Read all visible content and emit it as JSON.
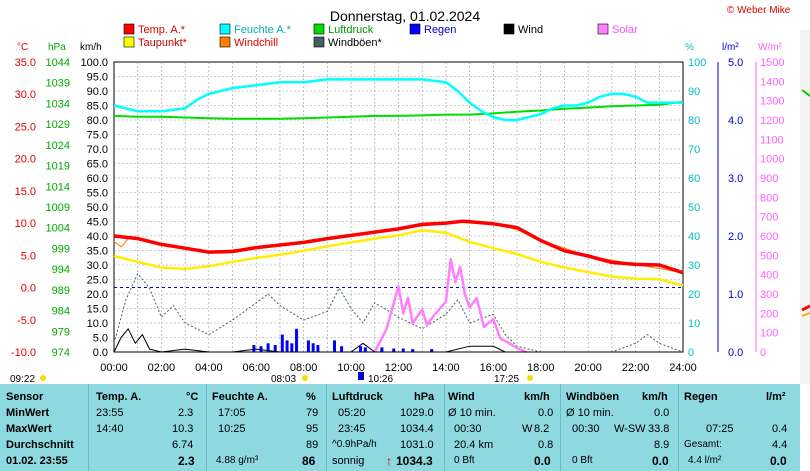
{
  "title": "Donnerstag, 01.02.2024",
  "copyright": "© Weber Mike",
  "legend": [
    {
      "label": "Temp. A.*",
      "color": "#ff0000"
    },
    {
      "label": "Feuchte A.*",
      "color": "#00ffff"
    },
    {
      "label": "Luftdruck",
      "color": "#00dd00"
    },
    {
      "label": "Regen",
      "color": "#0000ff"
    },
    {
      "label": "Wind",
      "color": "#000000"
    },
    {
      "label": "Solar",
      "color": "#ff80ff"
    },
    {
      "label": "Taupunkt*",
      "color": "#ffff00"
    },
    {
      "label": "Windchill",
      "color": "#ff8000"
    },
    {
      "label": "Windböen*",
      "color": "#406060"
    }
  ],
  "axis_units": {
    "temp": "°C",
    "pressure": "hPa",
    "wind": "km/h",
    "humidity": "%",
    "rain": "l/m²",
    "solar": "W/m²"
  },
  "markers": {
    "sunrise": "08:03",
    "sunset": "17:25",
    "moonrise": "09:22",
    "noon": "10:26"
  },
  "chart_data": {
    "type": "line",
    "x_ticks": [
      "00:00",
      "02:00",
      "04:00",
      "06:00",
      "08:00",
      "10:00",
      "12:00",
      "14:00",
      "16:00",
      "18:00",
      "20:00",
      "22:00",
      "24:00"
    ],
    "xlim": [
      0,
      24
    ],
    "axes": {
      "temp": {
        "ticks": [
          "35.0",
          "30.0",
          "25.0",
          "20.0",
          "15.0",
          "10.0",
          "5.0",
          "0.0",
          "-5.0",
          "-10.0"
        ],
        "ylim": [
          -10,
          35
        ]
      },
      "pressure": {
        "ticks": [
          "1044",
          "1039",
          "1034",
          "1029",
          "1024",
          "1019",
          "1014",
          "1009",
          "1004",
          "999",
          "994",
          "989",
          "984",
          "979",
          "974"
        ],
        "ylim": [
          974,
          1044
        ]
      },
      "wind": {
        "ticks": [
          "100.0",
          "95.0",
          "90.0",
          "85.0",
          "80.0",
          "75.0",
          "70.0",
          "65.0",
          "60.0",
          "55.0",
          "50.0",
          "45.0",
          "40.0",
          "35.0",
          "30.0",
          "25.0",
          "20.0",
          "15.0",
          "10.0",
          "5.0",
          "0.0"
        ],
        "ylim": [
          0,
          100
        ]
      },
      "humidity": {
        "ticks": [
          "100",
          "90",
          "80",
          "70",
          "60",
          "50",
          "40",
          "30",
          "20",
          "10",
          "0"
        ],
        "ylim": [
          0,
          100
        ]
      },
      "rain": {
        "ticks": [
          "5.0",
          "4.0",
          "3.0",
          "2.0",
          "1.0",
          "0.0"
        ],
        "ylim": [
          0,
          5
        ]
      },
      "solar": {
        "ticks": [
          "1500",
          "1400",
          "1300",
          "1200",
          "1100",
          "1000",
          "900",
          "800",
          "700",
          "600",
          "500",
          "400",
          "300",
          "200",
          "100",
          "0"
        ],
        "ylim": [
          0,
          1500
        ]
      }
    },
    "series": [
      {
        "name": "Feuchte A.*",
        "axis": "humidity",
        "x": [
          0,
          0.5,
          1,
          2,
          3,
          3.5,
          4,
          5,
          6,
          7,
          8,
          9,
          10,
          11,
          12,
          13,
          14,
          14.5,
          15,
          15.5,
          16,
          16.5,
          17,
          17.5,
          18,
          18.5,
          19,
          19.5,
          20,
          20.5,
          21,
          21.5,
          22,
          22.5,
          23,
          24
        ],
        "y": [
          85,
          84,
          83,
          83,
          84,
          87,
          89,
          91,
          92,
          93,
          93,
          94,
          94,
          94,
          94,
          94,
          93,
          90,
          86,
          83,
          81,
          80,
          80,
          81,
          82,
          84,
          85,
          85,
          86,
          88,
          89,
          89,
          88,
          86,
          86,
          86
        ]
      },
      {
        "name": "Luftdruck",
        "axis": "pressure",
        "x": [
          0,
          1,
          2,
          3,
          4,
          5,
          6,
          7,
          8,
          9,
          10,
          11,
          12,
          13,
          14,
          15,
          16,
          17,
          18,
          19,
          20,
          21,
          22,
          23,
          24
        ],
        "y": [
          1031.0,
          1030.8,
          1030.8,
          1030.6,
          1030.4,
          1030.3,
          1030.3,
          1030.3,
          1030.4,
          1030.6,
          1030.8,
          1031.0,
          1031.0,
          1031.1,
          1031.3,
          1031.3,
          1031.6,
          1032.0,
          1032.3,
          1032.7,
          1033.0,
          1033.3,
          1033.5,
          1033.7,
          1034.4
        ]
      },
      {
        "name": "Temp. A.*",
        "axis": "temp",
        "x": [
          0,
          1,
          2,
          3,
          4,
          5,
          6,
          7,
          8,
          9,
          10,
          11,
          12,
          13,
          14,
          14.7,
          15,
          16,
          17,
          18,
          19,
          20,
          21,
          22,
          23,
          24
        ],
        "y": [
          8.0,
          7.6,
          6.7,
          6.1,
          5.5,
          5.6,
          6.2,
          6.6,
          7.0,
          7.6,
          8.1,
          8.6,
          9.1,
          9.8,
          10.0,
          10.3,
          10.2,
          9.9,
          9.3,
          7.3,
          5.7,
          4.9,
          3.9,
          3.6,
          3.5,
          2.3
        ]
      },
      {
        "name": "Taupunkt*",
        "axis": "temp",
        "x": [
          0,
          1,
          2,
          3,
          4,
          5,
          6,
          7,
          8,
          9,
          10,
          11,
          12,
          13,
          14,
          15,
          16,
          17,
          18,
          19,
          20,
          21,
          22,
          23,
          24
        ],
        "y": [
          4.9,
          4.0,
          3.1,
          2.9,
          3.3,
          4.0,
          4.6,
          5.1,
          5.7,
          6.4,
          7.0,
          7.6,
          8.1,
          8.9,
          8.5,
          7.1,
          6.1,
          5.2,
          4.0,
          3.1,
          2.4,
          1.7,
          1.4,
          1.3,
          0.3
        ]
      },
      {
        "name": "Windchill",
        "axis": "temp",
        "x": [
          0,
          0.3,
          0.6,
          1,
          2,
          4,
          6,
          8,
          10,
          12,
          14,
          15,
          16,
          17,
          18,
          20,
          22,
          24
        ],
        "y": [
          7.2,
          6.3,
          7.6,
          7.5,
          6.7,
          5.5,
          6.2,
          7.0,
          8.1,
          9.1,
          10.0,
          10.2,
          9.9,
          9.0,
          7.3,
          4.9,
          3.6,
          2.3
        ]
      },
      {
        "name": "Wind",
        "axis": "wind",
        "x": [
          0,
          0.3,
          0.6,
          0.9,
          1.2,
          1.5,
          2,
          3,
          4,
          5,
          6,
          7,
          8,
          9,
          10,
          10.5,
          11,
          12,
          13,
          14,
          15,
          16,
          16.5,
          17,
          18,
          19,
          20,
          21,
          22,
          23,
          24
        ],
        "y": [
          0,
          5,
          8,
          3,
          6,
          1,
          0,
          1,
          0,
          0,
          1,
          0,
          0,
          0,
          0,
          3,
          0,
          0,
          0,
          0,
          2,
          2,
          0,
          0,
          0,
          0,
          0,
          0,
          0,
          0,
          0
        ]
      },
      {
        "name": "Windböen*",
        "axis": "wind",
        "x": [
          0,
          0.5,
          1,
          1.5,
          2,
          2.5,
          3,
          4,
          5,
          6,
          6.5,
          7,
          8,
          9,
          9.5,
          10,
          10.5,
          11,
          12,
          13,
          14,
          14.5,
          15,
          16,
          16.5,
          17,
          18,
          19,
          20,
          21,
          22,
          22.5,
          23,
          24
        ],
        "y": [
          3,
          18,
          27,
          22,
          12,
          16,
          10,
          6,
          11,
          17,
          20,
          16,
          11,
          14,
          22,
          15,
          10,
          17,
          12,
          8,
          13,
          18,
          10,
          13,
          6,
          2,
          0,
          0,
          0,
          0,
          3,
          6,
          3,
          0
        ]
      },
      {
        "name": "Solar",
        "axis": "solar",
        "x": [
          11,
          11.5,
          12,
          12.2,
          12.4,
          12.6,
          13,
          13.2,
          13.5,
          14,
          14.2,
          14.4,
          14.6,
          14.8,
          15,
          15.3,
          15.6,
          16,
          16.3,
          16.6,
          17,
          17.3,
          17.4
        ],
        "y": [
          0,
          120,
          340,
          200,
          280,
          150,
          220,
          140,
          190,
          260,
          480,
          360,
          440,
          300,
          230,
          280,
          130,
          170,
          70,
          50,
          20,
          5,
          0
        ]
      }
    ],
    "regen_bars": {
      "axis": "rain",
      "x": [
        5.9,
        6.2,
        6.5,
        6.8,
        7.1,
        7.3,
        7.5,
        7.7,
        8.2,
        8.4,
        8.6,
        9.3,
        9.6,
        10.4,
        10.6,
        11.3,
        11.8,
        12.2,
        12.6,
        13.4
      ],
      "y": [
        0.12,
        0.1,
        0.15,
        0.12,
        0.3,
        0.2,
        0.15,
        0.4,
        0.2,
        0.15,
        0.12,
        0.2,
        0.1,
        0.1,
        0.08,
        0.08,
        0.06,
        0.06,
        0.05,
        0.05
      ]
    },
    "gridlines": true
  },
  "stats": {
    "rows": [
      "Sensor",
      "MinWert",
      "MaxWert",
      "Durchschnitt",
      "01.02. 23:55"
    ],
    "temp": {
      "head": "Temp. A.",
      "unit": "°C",
      "min_t": "23:55",
      "min": "2.3",
      "max_t": "14:40",
      "max": "10.3",
      "avg": "6.74",
      "cur": "2.3"
    },
    "feuchte": {
      "head": "Feuchte A.",
      "unit": "%",
      "min_t": "17:05",
      "min": "79",
      "max_t": "10:25",
      "max": "95",
      "avg": "89",
      "abs": "4.88 g/m³",
      "cur": "86"
    },
    "druck": {
      "head": "Luftdruck",
      "unit": "hPa",
      "min_t": "05:20",
      "min": "1029.0",
      "max_t": "23:45",
      "max": "1034.4",
      "trend_l": "^0.9hPa/h",
      "avg": "1031.0",
      "state": "sonnig",
      "arrow": "↑",
      "cur": "1034.3"
    },
    "wind": {
      "head": "Wind",
      "unit": "km/h",
      "m1_l": "Ø 10 min.",
      "m1": "0.0",
      "m2_l": "00:30",
      "m2_d": "W",
      "m2": "8.2",
      "m3_l": "20.4 km",
      "m3": "0.8",
      "bft": "0 Bft",
      "cur": "0.0"
    },
    "boeen": {
      "head": "Windböen",
      "unit": "km/h",
      "m1_l": "Ø 10 min.",
      "m1": "0.0",
      "m2_l": "00:30",
      "m2_d": "W-SW",
      "m2": "33.8",
      "m3": "8.9",
      "bft": "0 Bft",
      "cur": "0.0"
    },
    "regen": {
      "head": "Regen",
      "unit": "l/m²",
      "m2_l": "07:25",
      "m2": "0.4",
      "m3_l": "Gesamt:",
      "m3": "4.4",
      "tot": "4.4 l/m²",
      "cur": "0.0"
    }
  }
}
